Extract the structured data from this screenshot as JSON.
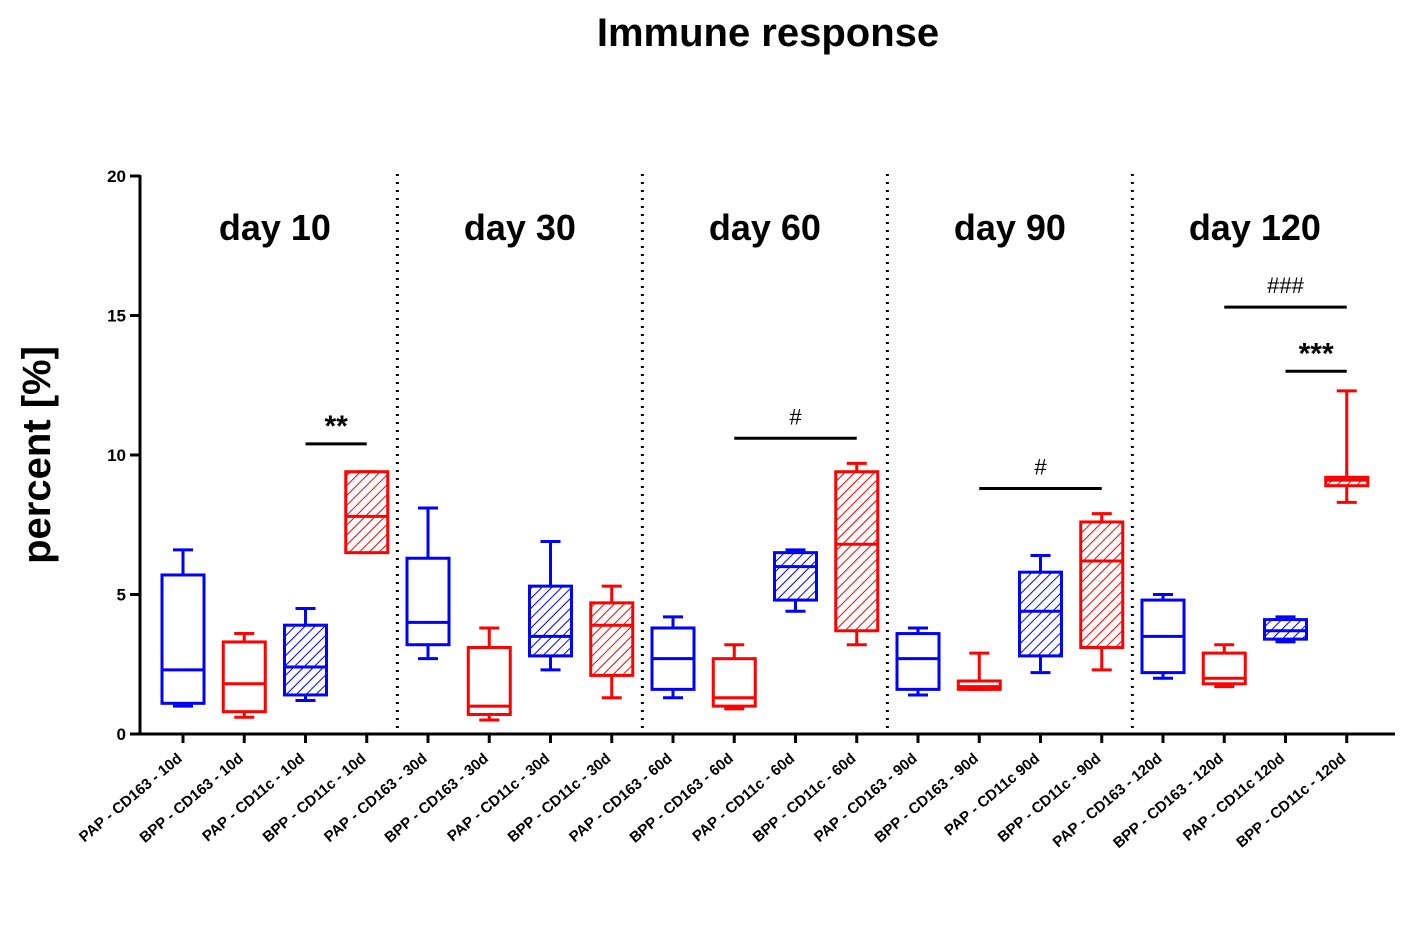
{
  "chart_data": {
    "type": "box",
    "title": "Immune response",
    "ylabel": "percent [%]",
    "ylim": [
      0,
      20
    ],
    "yticks": [
      0,
      5,
      10,
      15,
      20
    ],
    "grid": false,
    "colors": {
      "PAP": "#0000ff",
      "BPP": "#ff0000"
    },
    "panels": [
      "day 10",
      "day 30",
      "day 60",
      "day 90",
      "day 120"
    ],
    "categories": [
      {
        "label": "PAP - CD163 - 10d",
        "group": "PAP",
        "hatched": false,
        "min": 1.0,
        "q1": 1.1,
        "median": 2.3,
        "q3": 5.7,
        "max": 6.6
      },
      {
        "label": "BPP - CD163 - 10d",
        "group": "BPP",
        "hatched": false,
        "min": 0.6,
        "q1": 0.8,
        "median": 1.8,
        "q3": 3.3,
        "max": 3.6
      },
      {
        "label": "PAP - CD11c - 10d",
        "group": "PAP",
        "hatched": true,
        "min": 1.2,
        "q1": 1.4,
        "median": 2.4,
        "q3": 3.9,
        "max": 4.5
      },
      {
        "label": "BPP - CD11c - 10d",
        "group": "BPP",
        "hatched": true,
        "min": 6.5,
        "q1": 6.5,
        "median": 7.8,
        "q3": 9.4,
        "max": 9.4
      },
      {
        "label": "PAP - CD163 - 30d",
        "group": "PAP",
        "hatched": false,
        "min": 2.7,
        "q1": 3.2,
        "median": 4.0,
        "q3": 6.3,
        "max": 8.1
      },
      {
        "label": "BPP - CD163 - 30d",
        "group": "BPP",
        "hatched": false,
        "min": 0.5,
        "q1": 0.7,
        "median": 1.0,
        "q3": 3.1,
        "max": 3.8
      },
      {
        "label": "PAP - CD11c - 30d",
        "group": "PAP",
        "hatched": true,
        "min": 2.3,
        "q1": 2.8,
        "median": 3.5,
        "q3": 5.3,
        "max": 6.9
      },
      {
        "label": "BPP - CD11c - 30d",
        "group": "BPP",
        "hatched": true,
        "min": 1.3,
        "q1": 2.1,
        "median": 3.9,
        "q3": 4.7,
        "max": 5.3
      },
      {
        "label": "PAP - CD163 - 60d",
        "group": "PAP",
        "hatched": false,
        "min": 1.3,
        "q1": 1.6,
        "median": 2.7,
        "q3": 3.8,
        "max": 4.2
      },
      {
        "label": "BPP - CD163 - 60d",
        "group": "BPP",
        "hatched": false,
        "min": 0.9,
        "q1": 1.0,
        "median": 1.3,
        "q3": 2.7,
        "max": 3.2
      },
      {
        "label": "PAP - CD11c - 60d",
        "group": "PAP",
        "hatched": true,
        "min": 4.4,
        "q1": 4.8,
        "median": 6.0,
        "q3": 6.5,
        "max": 6.6
      },
      {
        "label": "BPP - CD11c - 60d",
        "group": "BPP",
        "hatched": true,
        "min": 3.2,
        "q1": 3.7,
        "median": 6.8,
        "q3": 9.4,
        "max": 9.7
      },
      {
        "label": "PAP - CD163 - 90d",
        "group": "PAP",
        "hatched": false,
        "min": 1.4,
        "q1": 1.6,
        "median": 2.7,
        "q3": 3.6,
        "max": 3.8
      },
      {
        "label": "BPP - CD163 - 90d",
        "group": "BPP",
        "hatched": false,
        "min": 1.6,
        "q1": 1.6,
        "median": 1.7,
        "q3": 1.9,
        "max": 2.9
      },
      {
        "label": "PAP - CD11c 90d",
        "group": "PAP",
        "hatched": true,
        "min": 2.2,
        "q1": 2.8,
        "median": 4.4,
        "q3": 5.8,
        "max": 6.4
      },
      {
        "label": "BPP - CD11c - 90d",
        "group": "BPP",
        "hatched": true,
        "min": 2.3,
        "q1": 3.1,
        "median": 6.2,
        "q3": 7.6,
        "max": 7.9
      },
      {
        "label": "PAP - CD163 - 120d",
        "group": "PAP",
        "hatched": false,
        "min": 2.0,
        "q1": 2.2,
        "median": 3.5,
        "q3": 4.8,
        "max": 5.0
      },
      {
        "label": "BPP - CD163 - 120d",
        "group": "BPP",
        "hatched": false,
        "min": 1.7,
        "q1": 1.8,
        "median": 2.0,
        "q3": 2.9,
        "max": 3.2
      },
      {
        "label": "PAP - CD11c 120d",
        "group": "PAP",
        "hatched": true,
        "min": 3.3,
        "q1": 3.4,
        "median": 3.7,
        "q3": 4.1,
        "max": 4.2
      },
      {
        "label": "BPP - CD11c - 120d",
        "group": "BPP",
        "hatched": true,
        "min": 8.3,
        "q1": 8.9,
        "median": 9.1,
        "q3": 9.2,
        "max": 12.3
      }
    ],
    "annotations": [
      {
        "text": "**",
        "from": 2,
        "to": 3,
        "y": 10.4,
        "style": "stars"
      },
      {
        "text": "#",
        "from": 9,
        "to": 11,
        "y": 10.6,
        "style": "hash"
      },
      {
        "text": "#",
        "from": 13,
        "to": 15,
        "y": 8.8,
        "style": "hash"
      },
      {
        "text": "###",
        "from": 17,
        "to": 19,
        "y": 15.3,
        "style": "hash"
      },
      {
        "text": "***",
        "from": 18,
        "to": 19,
        "y": 13.0,
        "style": "stars"
      }
    ]
  }
}
